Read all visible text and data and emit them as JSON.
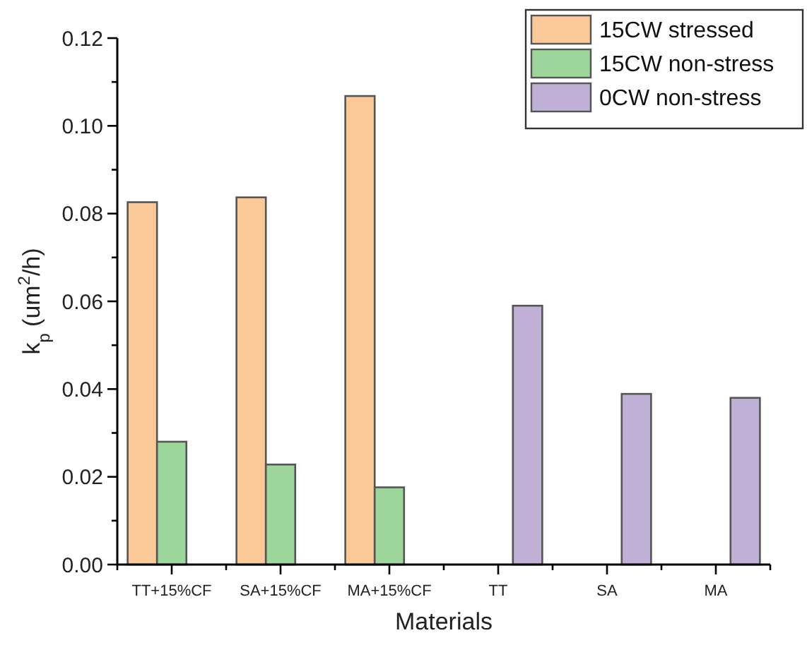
{
  "chart_data": {
    "type": "bar",
    "xlabel": "Materials",
    "ylabel": "k$_{p}$ (um$^{2}$/h)",
    "categories": [
      "TT+15%CF",
      "SA+15%CF",
      "MA+15%CF",
      "TT",
      "SA",
      "MA"
    ],
    "series": [
      {
        "name": "15CW stressed",
        "color": "#fbc897",
        "values": [
          0.0826,
          0.0837,
          0.1068,
          null,
          null,
          null
        ]
      },
      {
        "name": "15CW non-stress",
        "color": "#9dd69b",
        "values": [
          0.028,
          0.0228,
          0.0176,
          null,
          null,
          null
        ]
      },
      {
        "name": "0CW non-stress",
        "color": "#c0b0d6",
        "values": [
          null,
          null,
          null,
          0.059,
          0.0389,
          0.038
        ]
      }
    ],
    "ylim": [
      0,
      0.12
    ],
    "yticks": [
      {
        "value": 0,
        "label": "0.00"
      },
      {
        "value": 0.01,
        "label": null
      },
      {
        "value": 0.02,
        "label": "0.02"
      },
      {
        "value": 0.03,
        "label": null
      },
      {
        "value": 0.04,
        "label": "0.04"
      },
      {
        "value": 0.05,
        "label": null
      },
      {
        "value": 0.06,
        "label": "0.06"
      },
      {
        "value": 0.07,
        "label": null
      },
      {
        "value": 0.08,
        "label": "0.08"
      },
      {
        "value": 0.09,
        "label": null
      },
      {
        "value": 0.1,
        "label": "0.10"
      },
      {
        "value": 0.11,
        "label": null
      },
      {
        "value": 0.12,
        "label": "0.12"
      }
    ],
    "grid": false,
    "legend": "top right"
  }
}
